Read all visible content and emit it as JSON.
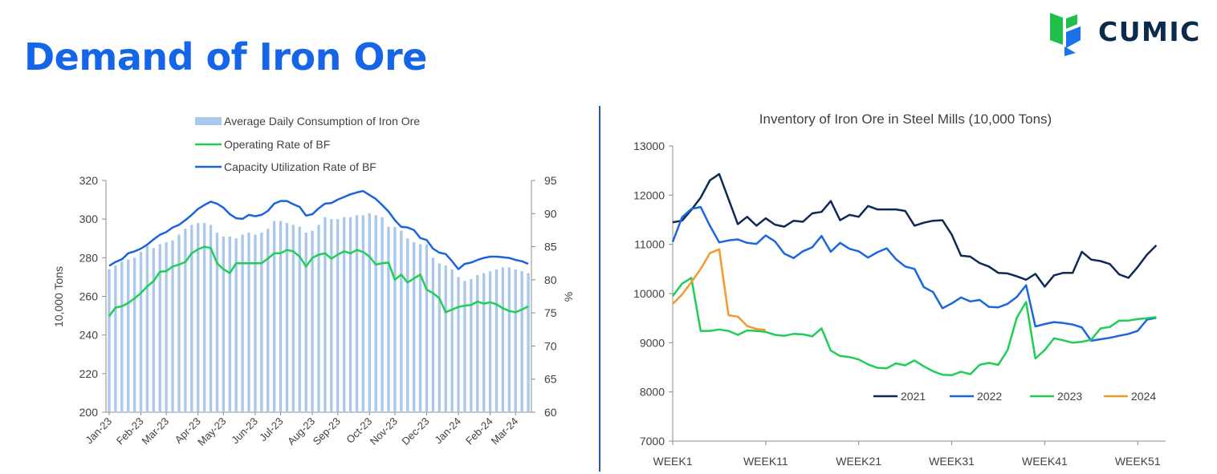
{
  "page": {
    "title": "Demand of Iron Ore",
    "brand": "CUMIC"
  },
  "colors": {
    "title": "#1565e8",
    "brand_dark": "#0b2a4c",
    "brand_green": "#1fbf4a",
    "brand_blue": "#1a73e8"
  },
  "chart_data": [
    {
      "type": "bar+line",
      "title": "",
      "ylabel_left": "10,000 Tons",
      "ylabel_right": "%",
      "ylim_left": [
        200,
        320
      ],
      "ylim_right": [
        60,
        95
      ],
      "yticks_left": [
        "200",
        "220",
        "240",
        "260",
        "280",
        "300",
        "320"
      ],
      "yticks_right": [
        "60",
        "65",
        "70",
        "75",
        "80",
        "85",
        "90",
        "95"
      ],
      "xtick_labels": [
        "Jan-23",
        "Feb-23",
        "Mar-23",
        "Apr-23",
        "May-23",
        "Jun-23",
        "Jul-23",
        "Aug-23",
        "Sep-23",
        "Oct-23",
        "Nov-23",
        "Dec-23",
        "Jan-24",
        "Feb-24",
        "Mar-24"
      ],
      "xtick_index": [
        0,
        5,
        9,
        14,
        18,
        23,
        27,
        32,
        36,
        41,
        45,
        50,
        55,
        60,
        64
      ],
      "grid": false,
      "legend": "top",
      "series": [
        {
          "name": "Average Daily Consumption of Iron Ore",
          "kind": "bar",
          "axis": "left",
          "color": "#a9c8ea",
          "values": [
            274,
            276,
            278,
            279,
            280,
            283,
            286,
            285,
            287,
            288,
            289,
            292,
            295,
            297,
            298,
            298,
            297,
            293,
            291,
            291,
            290,
            292,
            293,
            292,
            293,
            295,
            299,
            299,
            298,
            297,
            296,
            293,
            294,
            297,
            301,
            300,
            300,
            301,
            301,
            302,
            302,
            303,
            302,
            301,
            296,
            296,
            294,
            290,
            288,
            287,
            287,
            280,
            277,
            276,
            274,
            270,
            268,
            269,
            271,
            272,
            273,
            274,
            275,
            275,
            274,
            273,
            272
          ]
        },
        {
          "name": "Operating Rate of BF",
          "kind": "line",
          "axis": "right",
          "color": "#1fce55",
          "values": [
            74.5,
            75.8,
            76.0,
            76.5,
            77.2,
            78.0,
            79.0,
            79.8,
            81.2,
            81.3,
            82.0,
            82.3,
            82.7,
            84.0,
            84.6,
            85.0,
            84.8,
            82.5,
            81.6,
            81.0,
            82.5,
            82.5,
            82.5,
            82.5,
            82.5,
            83.2,
            84.0,
            84.0,
            84.5,
            84.3,
            83.5,
            82.0,
            83.3,
            83.8,
            84.0,
            83.2,
            83.8,
            84.3,
            84.0,
            84.5,
            84.2,
            83.5,
            82.3,
            82.5,
            82.6,
            80.0,
            80.8,
            79.6,
            80.2,
            80.8,
            78.5,
            78.0,
            77.2,
            75.1,
            75.5,
            75.9,
            76.1,
            76.2,
            76.7,
            76.4,
            76.6,
            76.3,
            75.7,
            75.3,
            75.1,
            75.5,
            76.0
          ]
        },
        {
          "name": "Capacity Utilization Rate of BF",
          "kind": "line",
          "axis": "right",
          "color": "#1a63e0",
          "values": [
            82.1,
            82.7,
            83.1,
            84.0,
            84.3,
            84.7,
            85.3,
            86.1,
            86.8,
            87.2,
            87.9,
            88.3,
            89.0,
            89.8,
            90.7,
            91.3,
            91.8,
            91.5,
            90.9,
            89.9,
            89.3,
            89.2,
            89.8,
            89.6,
            89.8,
            90.4,
            91.5,
            91.9,
            91.9,
            91.4,
            91.0,
            89.7,
            89.9,
            90.8,
            91.5,
            91.6,
            92.1,
            92.5,
            92.9,
            93.2,
            93.4,
            92.8,
            92.2,
            91.3,
            90.3,
            89.0,
            88.0,
            87.9,
            87.5,
            86.3,
            86.0,
            84.7,
            84.1,
            83.9,
            82.8,
            81.6,
            82.4,
            82.6,
            83.0,
            83.3,
            83.5,
            83.5,
            83.4,
            83.3,
            83.0,
            82.8,
            82.4
          ]
        }
      ]
    },
    {
      "type": "line",
      "title": "Inventory of Iron Ore in Steel Mills (10,000 Tons)",
      "xlabel": "",
      "ylabel": "",
      "ylim": [
        7000,
        13000
      ],
      "xlim": [
        1,
        54
      ],
      "yticks": [
        "7000",
        "8000",
        "9000",
        "10000",
        "11000",
        "12000",
        "13000"
      ],
      "xticks": [
        1,
        11,
        21,
        31,
        41,
        51
      ],
      "xtick_labels": [
        "WEEK1",
        "WEEK11",
        "WEEK21",
        "WEEK31",
        "WEEK41",
        "WEEK51"
      ],
      "grid": false,
      "legend": "bottom-right",
      "series": [
        {
          "name": "2021",
          "color": "#0d2a56",
          "values": [
            11450,
            11480,
            11700,
            11950,
            12300,
            12430,
            11920,
            11410,
            11560,
            11380,
            11530,
            11400,
            11360,
            11480,
            11460,
            11630,
            11660,
            11880,
            11490,
            11600,
            11560,
            11780,
            11710,
            11710,
            11710,
            11680,
            11380,
            11440,
            11480,
            11490,
            11200,
            10770,
            10750,
            10620,
            10550,
            10420,
            10410,
            10350,
            10280,
            10400,
            10140,
            10370,
            10420,
            10420,
            10850,
            10690,
            10660,
            10600,
            10390,
            10320,
            10540,
            10790,
            10980
          ]
        },
        {
          "name": "2022",
          "color": "#1a66e0",
          "values": [
            11050,
            11550,
            11720,
            11760,
            11380,
            11040,
            11080,
            11100,
            11030,
            11010,
            11180,
            11060,
            10810,
            10720,
            10860,
            10940,
            11170,
            10850,
            11030,
            10910,
            10860,
            10730,
            10840,
            10920,
            10700,
            10550,
            10500,
            10130,
            10030,
            9700,
            9800,
            9920,
            9840,
            9870,
            9730,
            9720,
            9790,
            9930,
            10170,
            9330,
            9380,
            9420,
            9400,
            9370,
            9310,
            9040,
            9070,
            9100,
            9140,
            9180,
            9240,
            9470,
            9510
          ]
        },
        {
          "name": "2023",
          "color": "#1fce55",
          "values": [
            9950,
            10200,
            10320,
            9240,
            9240,
            9270,
            9240,
            9160,
            9250,
            9240,
            9220,
            9160,
            9140,
            9180,
            9170,
            9130,
            9290,
            8840,
            8730,
            8710,
            8660,
            8560,
            8490,
            8480,
            8580,
            8540,
            8640,
            8520,
            8420,
            8350,
            8340,
            8410,
            8360,
            8550,
            8590,
            8550,
            8850,
            9510,
            9830,
            8680,
            8850,
            9090,
            9050,
            9000,
            9020,
            9060,
            9290,
            9320,
            9450,
            9450,
            9480,
            9500,
            9520
          ]
        },
        {
          "name": "2024",
          "color": "#f39a2c",
          "values": [
            9790,
            9980,
            10230,
            10500,
            10820,
            10900,
            9560,
            9530,
            9340,
            9280,
            9260
          ]
        }
      ]
    }
  ]
}
